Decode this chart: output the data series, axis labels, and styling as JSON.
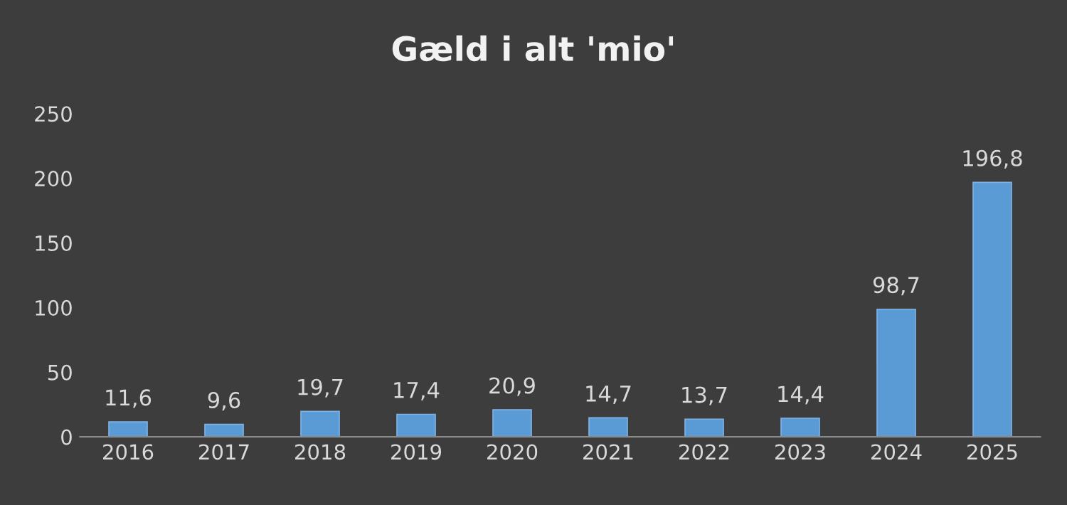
{
  "chart_data": {
    "type": "bar",
    "title": "Gæld i alt 'mio'",
    "categories": [
      "2016",
      "2017",
      "2018",
      "2019",
      "2020",
      "2021",
      "2022",
      "2023",
      "2024",
      "2025"
    ],
    "values": [
      11.6,
      9.6,
      19.7,
      17.4,
      20.9,
      14.7,
      13.7,
      14.4,
      98.7,
      196.8
    ],
    "value_labels": [
      "11,6",
      "9,6",
      "19,7",
      "17,4",
      "20,9",
      "14,7",
      "13,7",
      "14,4",
      "98,7",
      "196,8"
    ],
    "color": "#5b9bd5",
    "ylim": [
      0,
      250
    ],
    "yticks": [
      0,
      50,
      100,
      150,
      200,
      250
    ],
    "grid": false
  }
}
